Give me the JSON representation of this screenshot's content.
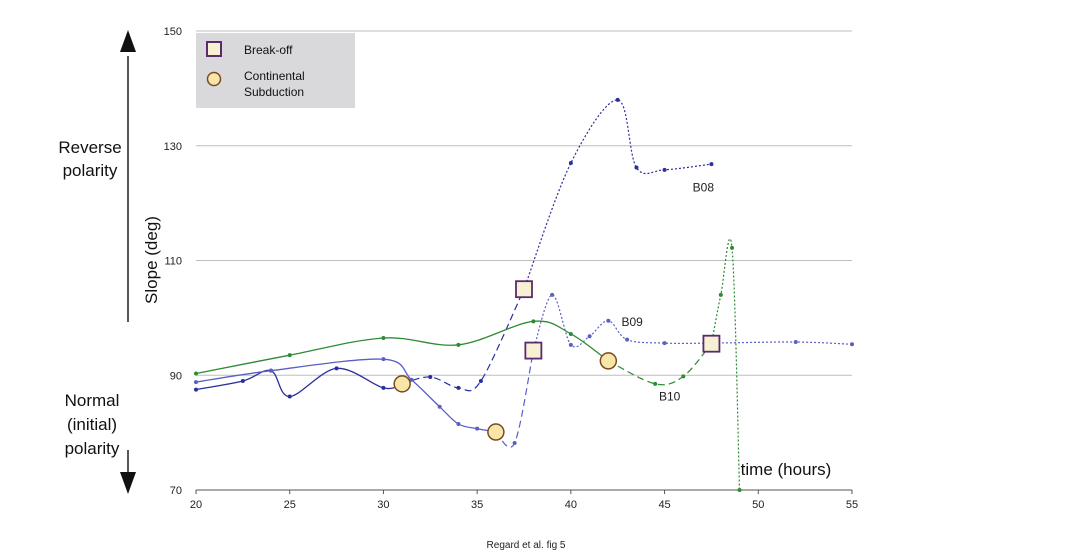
{
  "chart_data": {
    "type": "line",
    "ylabel": "Slope (deg)",
    "xlabel": "time (hours)",
    "caption": "Regard et al. fig 5",
    "xlim": [
      20,
      55
    ],
    "ylim": [
      70,
      150
    ],
    "x_ticks": [
      20,
      25,
      30,
      35,
      40,
      45,
      50,
      55
    ],
    "y_ticks": [
      70,
      90,
      110,
      130,
      150
    ],
    "grid": "horizontal",
    "side_labels": {
      "top": [
        "Reverse",
        "polarity"
      ],
      "bottom": [
        "Normal",
        "(initial)",
        "polarity"
      ]
    },
    "legend": {
      "position": "top-left",
      "items": [
        {
          "marker": "square",
          "lines": [
            "Break-off"
          ]
        },
        {
          "marker": "circle",
          "lines": [
            "Continental",
            "Subduction"
          ]
        }
      ]
    },
    "series": [
      {
        "name": "B08",
        "color": "#2b2f9c",
        "segments": [
          {
            "style": "solid",
            "points": [
              [
                20,
                87.5
              ],
              [
                22.5,
                89
              ],
              [
                24,
                90.8
              ],
              [
                25,
                86.3
              ],
              [
                27.5,
                91.2
              ],
              [
                30,
                87.8
              ],
              [
                31,
                88.5
              ]
            ]
          },
          {
            "style": "dashed",
            "points": [
              [
                31,
                88.5
              ],
              [
                32.5,
                89.7
              ],
              [
                34,
                87.8
              ],
              [
                35.2,
                89
              ],
              [
                37.5,
                105
              ]
            ]
          },
          {
            "style": "dotted",
            "points": [
              [
                37.5,
                105
              ],
              [
                40,
                127
              ],
              [
                42.5,
                138
              ],
              [
                43.5,
                126.2
              ],
              [
                45,
                125.8
              ],
              [
                47.5,
                126.8
              ]
            ]
          }
        ]
      },
      {
        "name": "B09",
        "color": "#5a5fc4",
        "segments": [
          {
            "style": "solid",
            "points": [
              [
                20,
                88.8
              ],
              [
                24,
                90.8
              ],
              [
                30,
                92.8
              ],
              [
                31.5,
                89.2
              ],
              [
                33,
                84.5
              ],
              [
                34,
                81.5
              ],
              [
                35,
                80.7
              ],
              [
                36,
                80.1
              ]
            ]
          },
          {
            "style": "dashed",
            "points": [
              [
                36,
                80.1
              ],
              [
                37,
                78.2
              ],
              [
                38,
                94.3
              ]
            ]
          },
          {
            "style": "dotted",
            "points": [
              [
                38,
                94.3
              ],
              [
                39,
                104
              ],
              [
                40,
                95.3
              ],
              [
                41,
                96.8
              ],
              [
                42,
                99.5
              ],
              [
                43,
                96.2
              ],
              [
                45,
                95.6
              ],
              [
                47.5,
                95.6
              ],
              [
                52,
                95.8
              ],
              [
                55,
                95.4
              ]
            ]
          }
        ]
      },
      {
        "name": "B10",
        "color": "#2e8b34",
        "segments": [
          {
            "style": "solid",
            "points": [
              [
                20,
                90.3
              ],
              [
                25,
                93.5
              ],
              [
                30,
                96.5
              ],
              [
                34,
                95.3
              ],
              [
                38,
                99.4
              ],
              [
                40,
                97.2
              ],
              [
                42,
                92.5
              ]
            ]
          },
          {
            "style": "dashed",
            "points": [
              [
                42,
                92.5
              ],
              [
                44.5,
                88.5
              ],
              [
                46,
                89.8
              ],
              [
                47.5,
                95.5
              ]
            ]
          },
          {
            "style": "dotted",
            "points": [
              [
                47.5,
                95.5
              ],
              [
                48,
                104
              ],
              [
                48.6,
                112.2
              ],
              [
                49,
                70
              ]
            ]
          }
        ]
      }
    ],
    "breakoff_points": [
      [
        37.5,
        105
      ],
      [
        38,
        94.3
      ],
      [
        47.5,
        95.5
      ]
    ],
    "continental_subduction_points": [
      [
        31,
        88.5
      ],
      [
        36,
        80.1
      ],
      [
        42,
        92.5
      ]
    ],
    "series_labels": [
      {
        "text": "B08",
        "x": 46.5,
        "y": 122
      },
      {
        "text": "B09",
        "x": 42.7,
        "y": 98.6
      },
      {
        "text": "B10",
        "x": 44.7,
        "y": 85.6
      }
    ]
  }
}
